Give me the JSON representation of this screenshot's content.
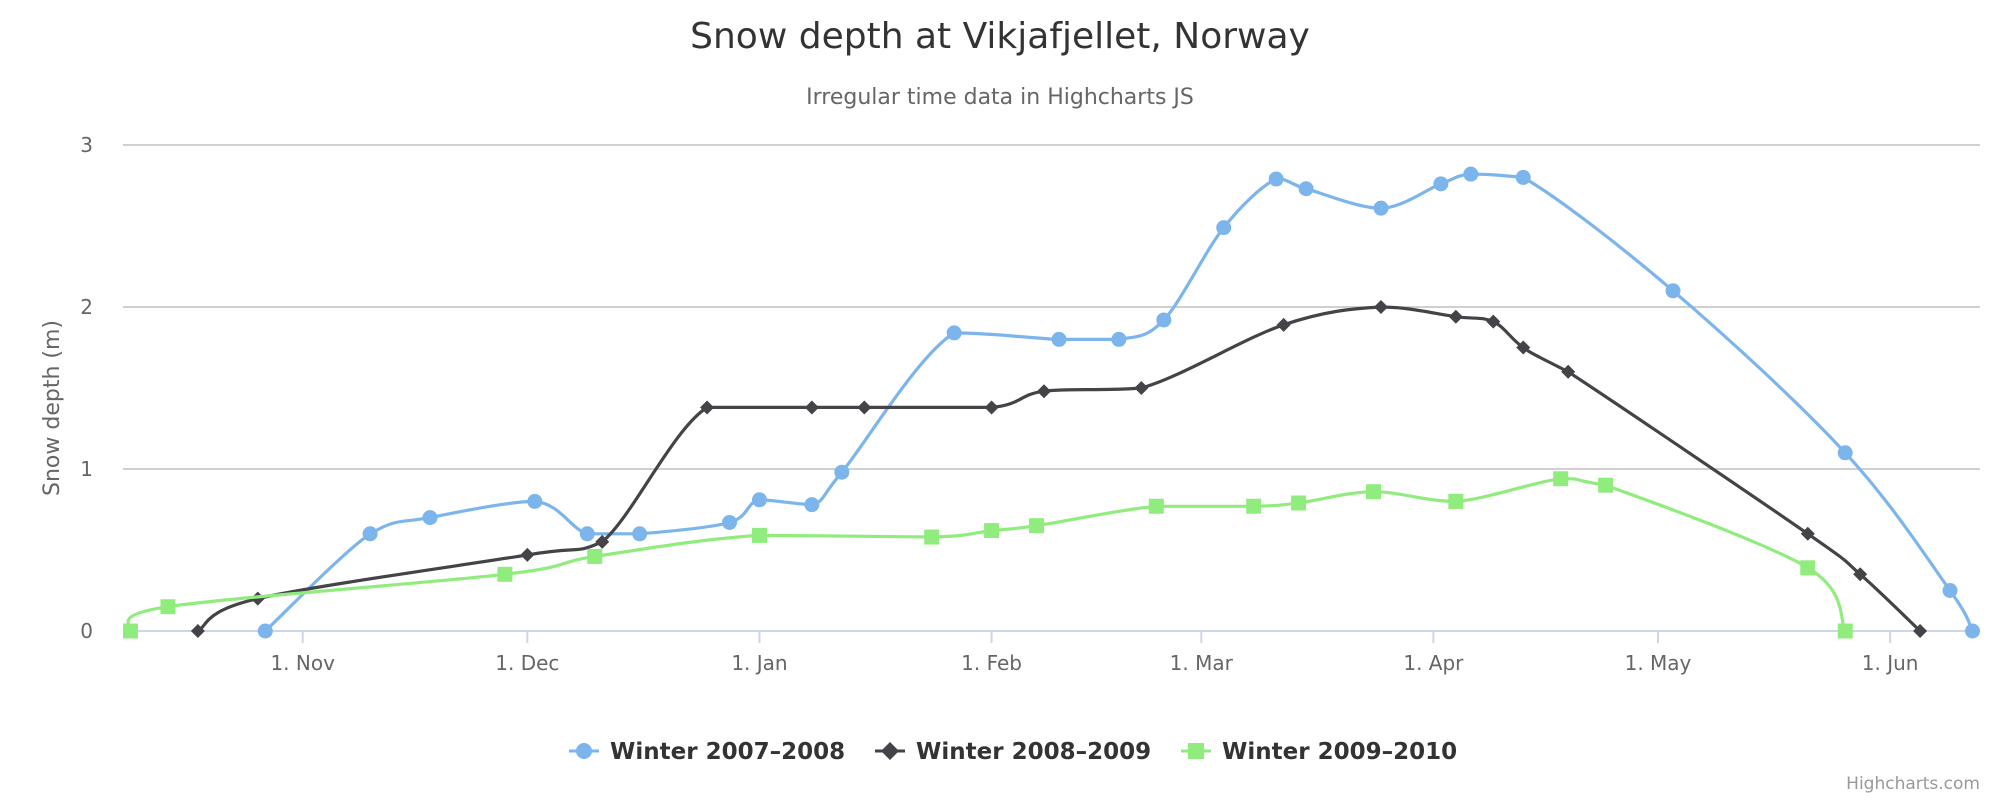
{
  "chart_data": {
    "type": "line",
    "title": "Snow depth at Vikjafjellet, Norway",
    "subtitle": "Irregular time data in Highcharts JS",
    "ylabel": "Snow depth (m)",
    "xlabel": "",
    "ylim": [
      0,
      3
    ],
    "xlim": [
      "1970-10-08",
      "1971-06-13"
    ],
    "x_tick_labels": [
      {
        "date": "1970-11-01",
        "label": "1. Nov"
      },
      {
        "date": "1970-12-01",
        "label": "1. Dec"
      },
      {
        "date": "1971-01-01",
        "label": "1. Jan"
      },
      {
        "date": "1971-02-01",
        "label": "1. Feb"
      },
      {
        "date": "1971-03-01",
        "label": "1. Mar"
      },
      {
        "date": "1971-04-01",
        "label": "1. Apr"
      },
      {
        "date": "1971-05-01",
        "label": "1. May"
      },
      {
        "date": "1971-06-01",
        "label": "1. Jun"
      }
    ],
    "y_ticks": [
      0,
      1,
      2,
      3
    ],
    "grid": true,
    "legend": "bottom-center",
    "series": [
      {
        "name": "Winter 2007-2008",
        "color": "#7cb5ec",
        "marker": "circle",
        "points": [
          [
            "1970-10-27",
            0
          ],
          [
            "1970-11-10",
            0.6
          ],
          [
            "1970-11-18",
            0.7
          ],
          [
            "1970-12-02",
            0.8
          ],
          [
            "1970-12-09",
            0.6
          ],
          [
            "1970-12-16",
            0.6
          ],
          [
            "1970-12-28",
            0.67
          ],
          [
            "1971-01-01",
            0.81
          ],
          [
            "1971-01-08",
            0.78
          ],
          [
            "1971-01-12",
            0.98
          ],
          [
            "1971-01-27",
            1.84
          ],
          [
            "1971-02-10",
            1.8
          ],
          [
            "1971-02-18",
            1.8
          ],
          [
            "1971-02-24",
            1.92
          ],
          [
            "1971-03-04",
            2.49
          ],
          [
            "1971-03-11",
            2.79
          ],
          [
            "1971-03-15",
            2.73
          ],
          [
            "1971-03-25",
            2.61
          ],
          [
            "1971-04-02",
            2.76
          ],
          [
            "1971-04-06",
            2.82
          ],
          [
            "1971-04-13",
            2.8
          ],
          [
            "1971-05-03",
            2.1
          ],
          [
            "1971-05-26",
            1.1
          ],
          [
            "1971-06-09",
            0.25
          ],
          [
            "1971-06-12",
            0
          ]
        ]
      },
      {
        "name": "Winter 2008-2009",
        "color": "#434348",
        "marker": "diamond",
        "points": [
          [
            "1970-10-18",
            0
          ],
          [
            "1970-10-26",
            0.2
          ],
          [
            "1970-12-01",
            0.47
          ],
          [
            "1970-12-11",
            0.55
          ],
          [
            "1970-12-25",
            1.38
          ],
          [
            "1971-01-08",
            1.38
          ],
          [
            "1971-01-15",
            1.38
          ],
          [
            "1971-02-01",
            1.38
          ],
          [
            "1971-02-08",
            1.48
          ],
          [
            "1971-02-21",
            1.5
          ],
          [
            "1971-03-12",
            1.89
          ],
          [
            "1971-03-25",
            2.0
          ],
          [
            "1971-04-04",
            1.94
          ],
          [
            "1971-04-09",
            1.91
          ],
          [
            "1971-04-13",
            1.75
          ],
          [
            "1971-04-19",
            1.6
          ],
          [
            "1971-05-21",
            0.6
          ],
          [
            "1971-05-28",
            0.35
          ],
          [
            "1971-06-05",
            0
          ]
        ]
      },
      {
        "name": "Winter 2009-2010",
        "color": "#90ed7d",
        "marker": "square",
        "points": [
          [
            "1970-10-09",
            0
          ],
          [
            "1970-10-14",
            0.15
          ],
          [
            "1970-11-28",
            0.35
          ],
          [
            "1970-12-10",
            0.46
          ],
          [
            "1971-01-01",
            0.59
          ],
          [
            "1971-01-24",
            0.58
          ],
          [
            "1971-02-01",
            0.62
          ],
          [
            "1971-02-07",
            0.65
          ],
          [
            "1971-02-23",
            0.77
          ],
          [
            "1971-03-08",
            0.77
          ],
          [
            "1971-03-14",
            0.79
          ],
          [
            "1971-03-24",
            0.86
          ],
          [
            "1971-04-04",
            0.8
          ],
          [
            "1971-04-18",
            0.94
          ],
          [
            "1971-04-24",
            0.9
          ],
          [
            "1971-05-21",
            0.39
          ],
          [
            "1971-05-26",
            0
          ]
        ]
      }
    ]
  },
  "legend_items": [
    "Winter 2007–2008",
    "Winter 2008–2009",
    "Winter 2009–2010"
  ],
  "credits": "Highcharts.com"
}
